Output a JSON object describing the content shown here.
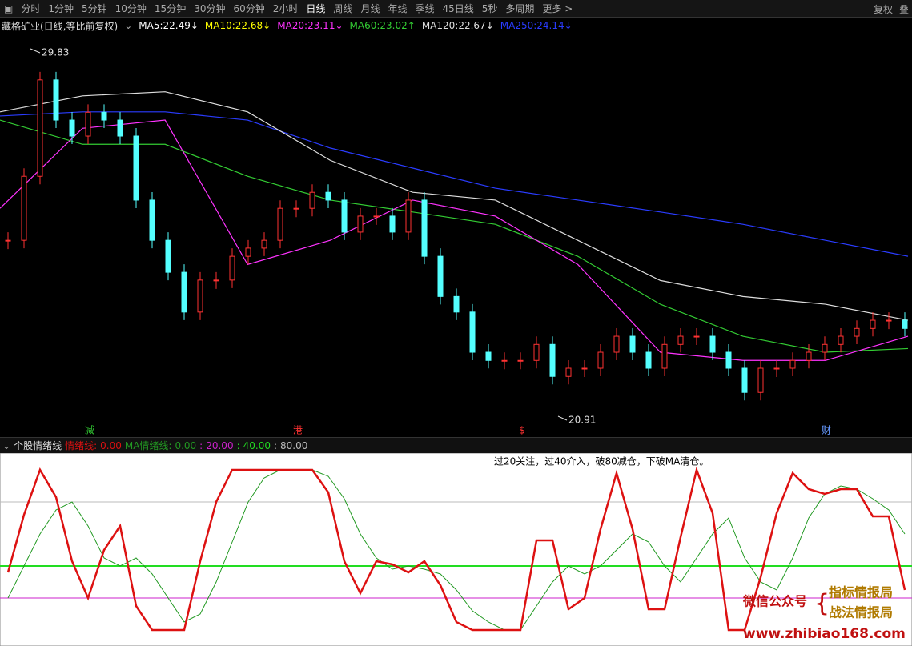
{
  "toolbar": {
    "tabs": [
      "分时",
      "1分钟",
      "5分钟",
      "10分钟",
      "15分钟",
      "30分钟",
      "60分钟",
      "2小时",
      "日线",
      "周线",
      "月线",
      "年线",
      "季线",
      "45日线",
      "5秒",
      "多周期",
      "更多 >"
    ],
    "active": 8,
    "right": [
      "复权",
      "叠"
    ]
  },
  "stock_header": {
    "title": "藏格矿业(日线,等比前复权)",
    "ma": [
      {
        "name": "MA5:",
        "value": 22.49,
        "arrow": "↓",
        "color": "#ffffff"
      },
      {
        "name": "MA10:",
        "value": 22.68,
        "arrow": "↓",
        "color": "#ffff00"
      },
      {
        "name": "MA20:",
        "value": 23.11,
        "arrow": "↓",
        "color": "#ff33ff"
      },
      {
        "name": "MA60:",
        "value": 23.02,
        "arrow": "↑",
        "color": "#33cc33"
      },
      {
        "name": "MA120:",
        "value": 22.67,
        "arrow": "↓",
        "color": "#dddddd"
      },
      {
        "name": "MA250:",
        "value": 24.14,
        "arrow": "↓",
        "color": "#2a3cff"
      }
    ]
  },
  "price_chart": {
    "high": {
      "value": 29.83,
      "label": "29.83"
    },
    "low": {
      "value": 20.91,
      "label": "20.91"
    },
    "closes": [
      25.24,
      26.8,
      29.15,
      28.17,
      27.78,
      28.36,
      28.17,
      27.78,
      26.22,
      25.24,
      24.46,
      23.49,
      24.27,
      24.27,
      24.85,
      25.05,
      25.24,
      26.02,
      26.02,
      26.41,
      26.22,
      25.44,
      25.83,
      25.83,
      25.44,
      26.22,
      24.85,
      23.87,
      23.49,
      22.51,
      22.31,
      22.31,
      22.31,
      22.7,
      21.92,
      22.12,
      22.12,
      22.51,
      22.9,
      22.51,
      22.12,
      22.7,
      22.9,
      22.9,
      22.51,
      22.12,
      21.53,
      22.12,
      22.12,
      22.31,
      22.51,
      22.7,
      22.9,
      23.09,
      23.29,
      23.29,
      23.09
    ],
    "up_color": "#ff3232",
    "down_color": "#54ffff",
    "ma_lines": [
      {
        "name": "MA250",
        "color": "#2a3cff",
        "values": [
          28.27,
          28.37,
          28.37,
          28.17,
          27.49,
          27.0,
          26.51,
          26.22,
          25.93,
          25.63,
          25.24,
          24.85
        ]
      },
      {
        "name": "MA120",
        "color": "#dddddd",
        "values": [
          28.37,
          28.76,
          28.86,
          28.37,
          27.19,
          26.41,
          26.22,
          25.24,
          24.26,
          23.87,
          23.68,
          23.29
        ]
      },
      {
        "name": "MA60",
        "color": "#33cc33",
        "values": [
          28.17,
          27.58,
          27.58,
          26.8,
          26.22,
          25.93,
          25.63,
          24.85,
          23.68,
          22.9,
          22.51,
          22.6
        ]
      },
      {
        "name": "MA20",
        "color": "#ff33ff",
        "values": [
          26.02,
          27.97,
          28.17,
          24.65,
          25.24,
          26.22,
          25.83,
          24.65,
          22.51,
          22.31,
          22.31,
          22.9
        ]
      }
    ],
    "events": [
      {
        "label": "减",
        "color": "#33cc33",
        "index": 5
      },
      {
        "label": "港",
        "color": "#ff3232",
        "index": 18
      },
      {
        "label": "$",
        "color": "#ff3232",
        "index": 32
      },
      {
        "label": "财",
        "color": "#6699ff",
        "index": 51
      }
    ]
  },
  "indicator": {
    "title": "个股情绪线",
    "series": [
      {
        "name": "情绪线:",
        "current": {
          "value": 0,
          "label": "0.00"
        },
        "color": "#dd1111",
        "values": [
          36,
          72,
          100,
          83,
          43,
          20,
          50,
          65,
          15,
          0,
          0,
          0,
          43,
          80,
          100,
          100,
          100,
          100,
          100,
          100,
          86,
          43,
          23,
          43,
          41,
          36,
          43,
          28,
          5,
          0,
          0,
          0,
          0,
          56,
          56,
          13,
          20,
          63,
          98,
          63,
          13,
          13,
          58,
          100,
          73,
          0,
          0,
          33,
          73,
          98,
          88,
          85,
          88,
          88,
          71,
          71,
          25
        ]
      },
      {
        "name": "MA情绪线:",
        "current": {
          "value": 0,
          "label": "0.00"
        },
        "color": "#229922",
        "values": [
          20,
          40,
          60,
          75,
          80,
          65,
          45,
          40,
          45,
          35,
          20,
          5,
          10,
          30,
          55,
          80,
          95,
          100,
          100,
          100,
          96,
          82,
          60,
          45,
          38,
          40,
          38,
          35,
          25,
          12,
          5,
          0,
          0,
          15,
          30,
          40,
          35,
          40,
          50,
          60,
          55,
          40,
          30,
          45,
          60,
          70,
          45,
          30,
          25,
          45,
          70,
          85,
          90,
          88,
          82,
          75,
          60
        ]
      }
    ],
    "levels": [
      {
        "value": 20,
        "label": "20.00",
        "color": "#cc22cc"
      },
      {
        "value": 40,
        "label": "40.00",
        "color": "#22dd22"
      },
      {
        "value": 80,
        "label": "80.00",
        "color": "#bbbbbb"
      }
    ],
    "note": "过20关注，过40介入，破80减仓，下破MA清仓。"
  },
  "watermark": {
    "wechat": "微信公众号",
    "brand1": "指标情报局",
    "brand2": "战法情报局",
    "url": "www.zhibiao168.com"
  }
}
